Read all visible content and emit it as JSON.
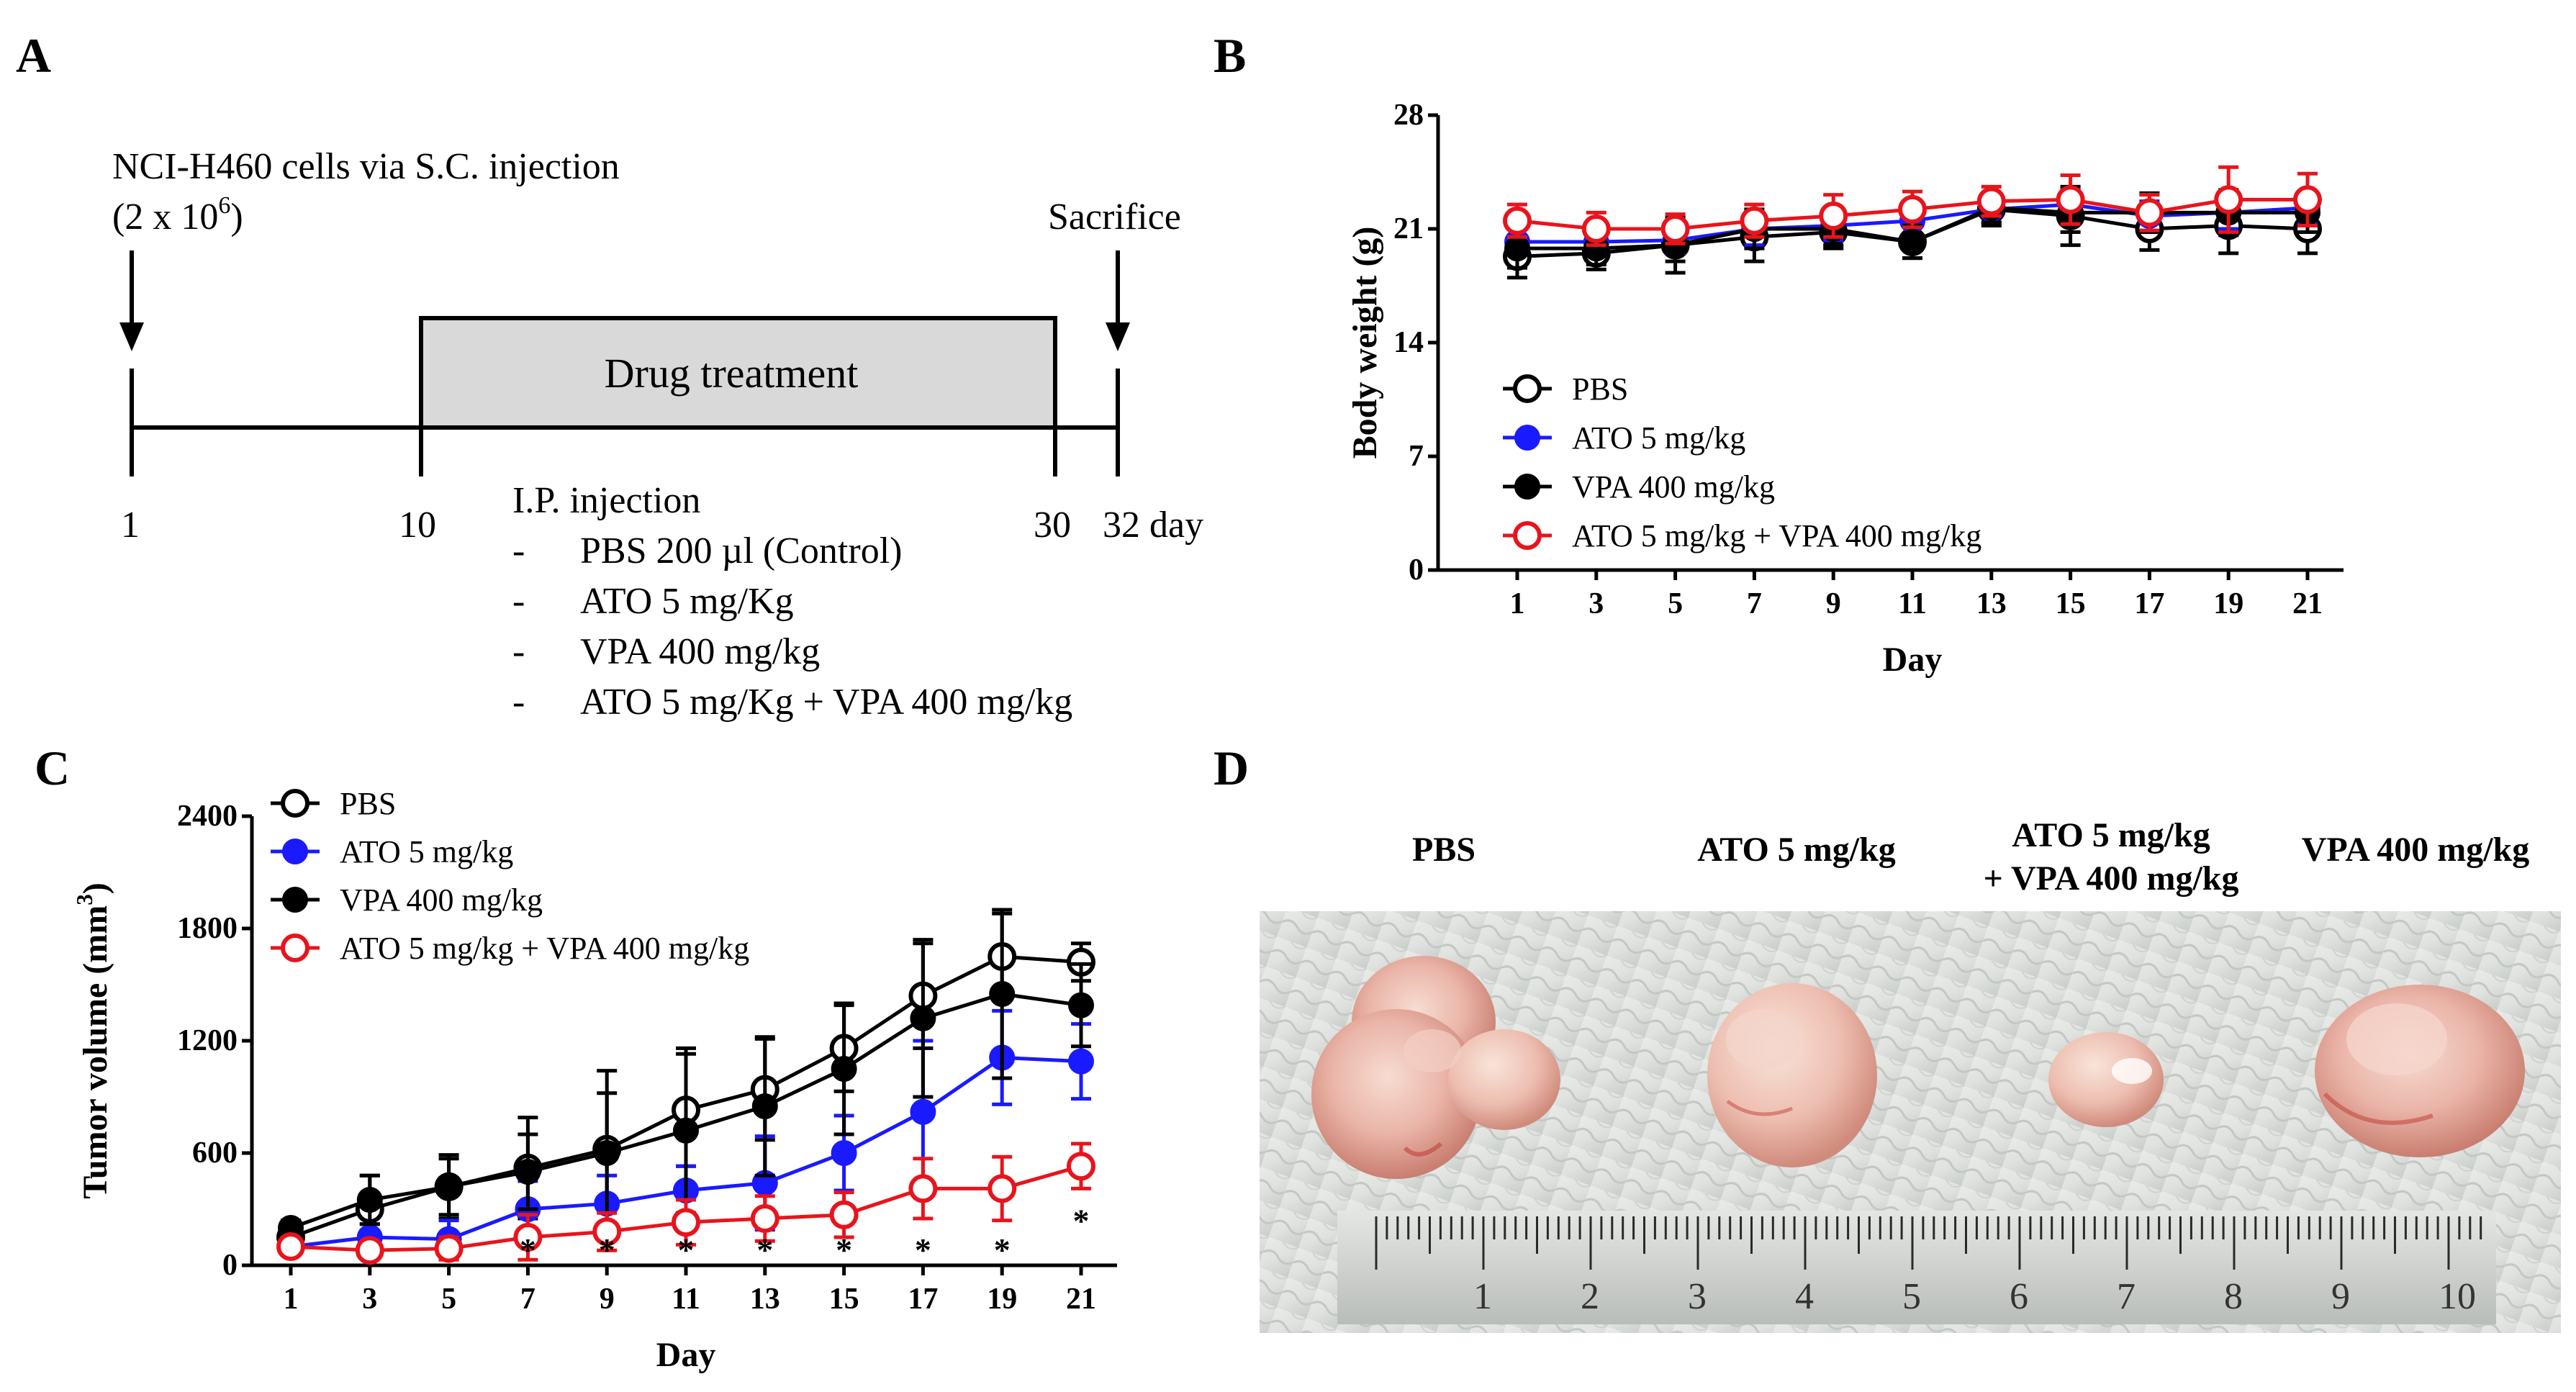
{
  "panels": {
    "A": {
      "label": "A",
      "cells_text": "NCI-H460 cells via S.C. injection",
      "cells_count": "(2 x 10",
      "cells_count_exp": "6",
      "cells_count_close": ")",
      "sacrifice": "Sacrifice",
      "drug_treatment": "Drug treatment",
      "ticks": [
        "1",
        "10",
        "30",
        "32 day"
      ],
      "ip_injection": "I.P. injection",
      "dash": "-",
      "treatments": [
        "PBS 200 µl (Control)",
        "ATO 5 mg/Kg",
        "VPA 400 mg/kg",
        "ATO 5 mg/Kg  + VPA 400 mg/kg"
      ]
    },
    "B": {
      "label": "B"
    },
    "C": {
      "label": "C"
    },
    "D": {
      "label": "D",
      "photo_labels": [
        "PBS",
        "ATO 5 mg/kg",
        "ATO 5 mg/kg",
        "+ VPA 400 mg/kg",
        "VPA 400 mg/kg"
      ],
      "ruler_numbers": [
        "1",
        "2",
        "3",
        "4",
        "5",
        "6",
        "7",
        "8",
        "9",
        "10"
      ]
    }
  },
  "colors": {
    "black": "#000000",
    "blue": "#1a1aff",
    "red": "#e8141c"
  },
  "chart_data": [
    {
      "panel": "B",
      "type": "line",
      "xlabel": "Day",
      "ylabel": "Body weight  (g)",
      "x": [
        1,
        3,
        5,
        7,
        9,
        11,
        13,
        15,
        17,
        19,
        21
      ],
      "xticks": [
        "1",
        "3",
        "5",
        "7",
        "9",
        "11",
        "13",
        "15",
        "17",
        "19",
        "21"
      ],
      "ylim": [
        0,
        28
      ],
      "yticks": [
        "0",
        "7",
        "14",
        "21",
        "28"
      ],
      "legend_position": "bottom-left",
      "series": [
        {
          "name": "PBS",
          "color": "#000000",
          "marker": "open",
          "values": [
            19.3,
            19.5,
            20.0,
            20.5,
            20.8,
            20.2,
            22.2,
            21.8,
            21.0,
            21.2,
            21.0
          ],
          "errors": [
            1.3,
            1.0,
            1.7,
            1.5,
            1.0,
            1.0,
            1.0,
            1.8,
            1.3,
            1.7,
            1.5
          ]
        },
        {
          "name": "ATO 5 mg/kg",
          "color": "#1a1aff",
          "marker": "filled",
          "values": [
            20.2,
            20.2,
            20.3,
            21.0,
            21.2,
            21.5,
            22.2,
            22.5,
            21.8,
            22.0,
            22.3
          ],
          "errors": [
            0.8,
            0.8,
            0.8,
            1.0,
            0.9,
            0.9,
            0.8,
            0.9,
            0.9,
            1.0,
            1.0
          ]
        },
        {
          "name": "VPA 400 mg/kg",
          "color": "#000000",
          "marker": "filled",
          "values": [
            19.8,
            19.8,
            20.0,
            21.0,
            21.0,
            20.2,
            22.3,
            22.0,
            22.0,
            22.0,
            22.0
          ],
          "errors": [
            1.2,
            1.0,
            1.0,
            1.2,
            1.0,
            1.0,
            0.9,
            1.2,
            1.2,
            1.4,
            1.2
          ]
        },
        {
          "name": "ATO 5 mg/kg + VPA 400 mg/kg",
          "color": "#e8141c",
          "marker": "open",
          "values": [
            21.5,
            21.0,
            21.0,
            21.5,
            21.8,
            22.2,
            22.7,
            22.8,
            22.0,
            22.8,
            22.8
          ],
          "errors": [
            1.0,
            1.0,
            0.9,
            1.0,
            1.3,
            1.1,
            0.9,
            1.5,
            1.1,
            2.0,
            1.6
          ]
        }
      ]
    },
    {
      "panel": "C",
      "type": "line",
      "xlabel": "Day",
      "ylabel": "Tumor volume (mm",
      "ylabel_sup": "3",
      "ylabel_close": ")",
      "x": [
        1,
        3,
        5,
        7,
        9,
        11,
        13,
        15,
        17,
        19,
        21
      ],
      "xticks": [
        "1",
        "3",
        "5",
        "7",
        "9",
        "11",
        "13",
        "15",
        "17",
        "19",
        "21"
      ],
      "ylim": [
        0,
        2400
      ],
      "yticks": [
        "0",
        "600",
        "1200",
        "1800",
        "2400"
      ],
      "legend_position": "top-left",
      "significance_marker": "*",
      "significance_days": [
        7,
        9,
        11,
        13,
        15,
        17,
        19,
        21
      ],
      "series": [
        {
          "name": "PBS",
          "color": "#000000",
          "marker": "open",
          "values": [
            150,
            300,
            420,
            520,
            620,
            830,
            940,
            1160,
            1440,
            1650,
            1620
          ],
          "errors": [
            40,
            180,
            170,
            270,
            300,
            300,
            270,
            230,
            280,
            230,
            100
          ]
        },
        {
          "name": "ATO 5 mg/kg",
          "color": "#1a1aff",
          "marker": "filled",
          "values": [
            100,
            150,
            140,
            300,
            330,
            400,
            440,
            600,
            820,
            1110,
            1090
          ],
          "errors": [
            40,
            70,
            100,
            150,
            150,
            130,
            250,
            200,
            380,
            250,
            200
          ]
        },
        {
          "name": "VPA 400 mg/kg",
          "color": "#000000",
          "marker": "filled",
          "values": [
            200,
            350,
            420,
            500,
            600,
            720,
            850,
            1050,
            1320,
            1450,
            1390
          ],
          "errors": [
            40,
            130,
            150,
            200,
            440,
            440,
            370,
            350,
            420,
            450,
            220
          ]
        },
        {
          "name": "ATO 5 mg/kg + VPA 400 mg/kg",
          "color": "#e8141c",
          "marker": "open",
          "values": [
            100,
            80,
            90,
            150,
            180,
            230,
            250,
            270,
            410,
            410,
            530
          ],
          "errors": [
            40,
            40,
            60,
            120,
            100,
            120,
            120,
            120,
            160,
            170,
            120
          ]
        }
      ]
    }
  ]
}
